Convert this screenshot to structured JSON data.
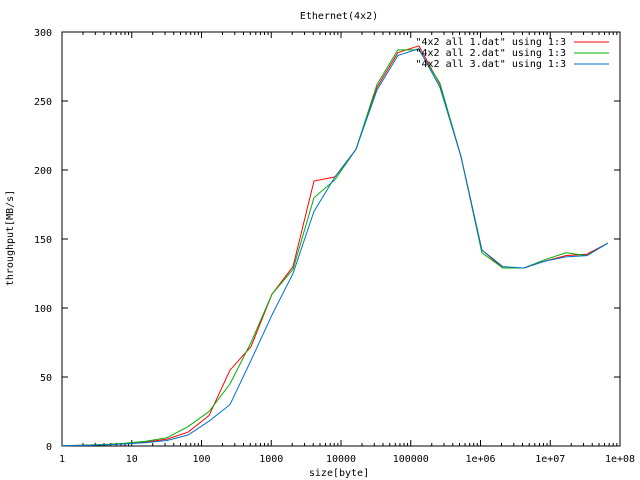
{
  "chart_data": {
    "type": "line",
    "title": "Ethernet(4x2)",
    "xlabel": "size[byte]",
    "ylabel": "throughput[MB/s]",
    "xscale": "log",
    "xlim": [
      1,
      100000000
    ],
    "ylim": [
      0,
      300
    ],
    "x_ticks": [
      1,
      10,
      100,
      1000,
      10000,
      100000,
      1000000,
      10000000,
      100000000
    ],
    "x_tick_labels": [
      "1",
      "10",
      "100",
      "1000",
      "10000",
      "100000",
      "1e+06",
      "1e+07",
      "1e+08"
    ],
    "y_ticks": [
      0,
      50,
      100,
      150,
      200,
      250,
      300
    ],
    "y_tick_labels": [
      "0",
      "50",
      "100",
      "150",
      "200",
      "250",
      "300"
    ],
    "grid": false,
    "legend_position": "top-right",
    "series": [
      {
        "name": "\"4x2 all 1.dat\" using 1:3",
        "color": "#ff0000",
        "x": [
          1,
          2,
          4,
          8,
          16,
          32,
          64,
          128,
          256,
          512,
          1024,
          2048,
          4096,
          8192,
          16384,
          32768,
          65536,
          131072,
          262144,
          524288,
          1048576,
          2097152,
          4194304,
          8388608,
          16777216,
          33554432,
          67108864
        ],
        "y": [
          0.2,
          0.5,
          0.9,
          1.6,
          2.8,
          5,
          10,
          22,
          55,
          72,
          110,
          130,
          192,
          195,
          215,
          260,
          285,
          290,
          262,
          210,
          142,
          129,
          129,
          134,
          138,
          139,
          147
        ]
      },
      {
        "name": "\"4x2 all 2.dat\" using 1:3",
        "color": "#00b000",
        "x": [
          1,
          2,
          4,
          8,
          16,
          32,
          64,
          128,
          256,
          512,
          1024,
          2048,
          4096,
          8192,
          16384,
          32768,
          65536,
          131072,
          262144,
          524288,
          1048576,
          2097152,
          4194304,
          8388608,
          16777216,
          33554432,
          67108864
        ],
        "y": [
          0.3,
          0.6,
          1.1,
          2,
          3.5,
          6,
          14,
          25,
          45,
          75,
          110,
          128,
          180,
          193,
          215,
          262,
          287,
          287,
          263,
          210,
          140,
          129,
          129,
          135,
          140,
          138,
          147
        ]
      },
      {
        "name": "\"4x2 all 3.dat\" using 1:3",
        "color": "#0070d0",
        "x": [
          1,
          2,
          4,
          8,
          16,
          32,
          64,
          128,
          256,
          512,
          1024,
          2048,
          4096,
          8192,
          16384,
          32768,
          65536,
          131072,
          262144,
          524288,
          1048576,
          2097152,
          4194304,
          8388608,
          16777216,
          33554432,
          67108864
        ],
        "y": [
          0.2,
          0.4,
          0.8,
          1.5,
          2.5,
          4,
          8,
          18,
          30,
          62,
          95,
          125,
          170,
          195,
          215,
          258,
          283,
          288,
          260,
          210,
          142,
          130,
          129,
          134,
          137,
          138,
          147
        ]
      }
    ]
  }
}
